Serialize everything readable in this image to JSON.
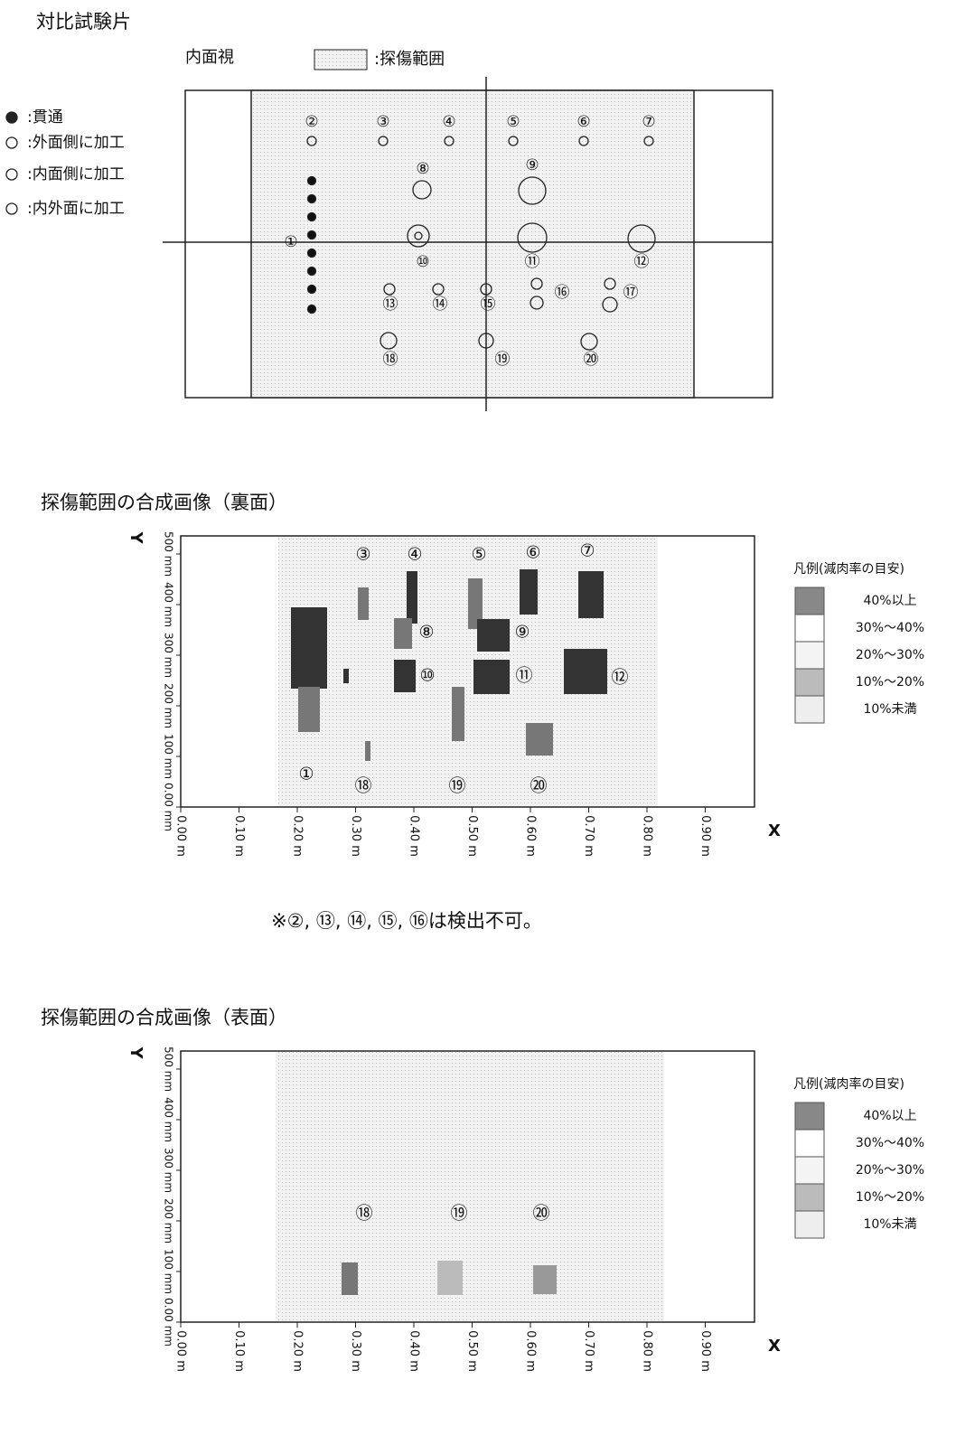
{
  "specimen": {
    "title": "対比試験片",
    "view_label": "内面視",
    "range_label": ":探傷範囲",
    "legend": [
      ":貫通",
      ":外面側に加工",
      ":内面側に加工",
      ":内外面に加工"
    ],
    "holes": [
      "①",
      "②",
      "③",
      "④",
      "⑤",
      "⑥",
      "⑦",
      "⑧",
      "⑨",
      "⑩",
      "⑪",
      "⑫",
      "⑬",
      "⑭",
      "⑮",
      "⑯",
      "⑰",
      "⑱",
      "⑲",
      "⑳"
    ]
  },
  "back_image": {
    "title": "探傷範囲の合成画像（裏面）",
    "y_axis_label": "Y",
    "x_axis_label": "X",
    "y_ticks": [
      "0.00 mm",
      "100 mm",
      "200 mm",
      "300 mm",
      "400 mm",
      "500 mm"
    ],
    "x_ticks": [
      "0.00 m",
      "0.10 m",
      "0.20 m",
      "0.30 m",
      "0.40 m",
      "0.50 m",
      "0.60 m",
      "0.70 m",
      "0.80 m",
      "0.90 m"
    ],
    "markers": [
      "③",
      "④",
      "⑤",
      "⑥",
      "⑦",
      "⑧",
      "⑨",
      "⑩",
      "⑪",
      "⑫",
      "①",
      "⑱",
      "⑲",
      "⑳"
    ],
    "legend_title": "凡例(減肉率の目安)",
    "legend": [
      "40%以上",
      "30%～40%",
      "20%～30%",
      "10%～20%",
      "10%未満"
    ],
    "note": "※②, ⑬, ⑭, ⑮, ⑯は検出不可。"
  },
  "front_image": {
    "title": "探傷範囲の合成画像（表面）",
    "y_axis_label": "Y",
    "x_axis_label": "X",
    "y_ticks": [
      "0.00 mm",
      "100 mm",
      "200 mm",
      "300 mm",
      "400 mm",
      "500 mm"
    ],
    "x_ticks": [
      "0.00 m",
      "0.10 m",
      "0.20 m",
      "0.30 m",
      "0.40 m",
      "0.50 m",
      "0.60 m",
      "0.70 m",
      "0.80 m",
      "0.90 m"
    ],
    "markers": [
      "⑱",
      "⑲",
      "⑳"
    ],
    "legend_title": "凡例(減肉率の目安)",
    "legend": [
      "40%以上",
      "30%～40%",
      "20%～30%",
      "10%～20%",
      "10%未満"
    ]
  }
}
